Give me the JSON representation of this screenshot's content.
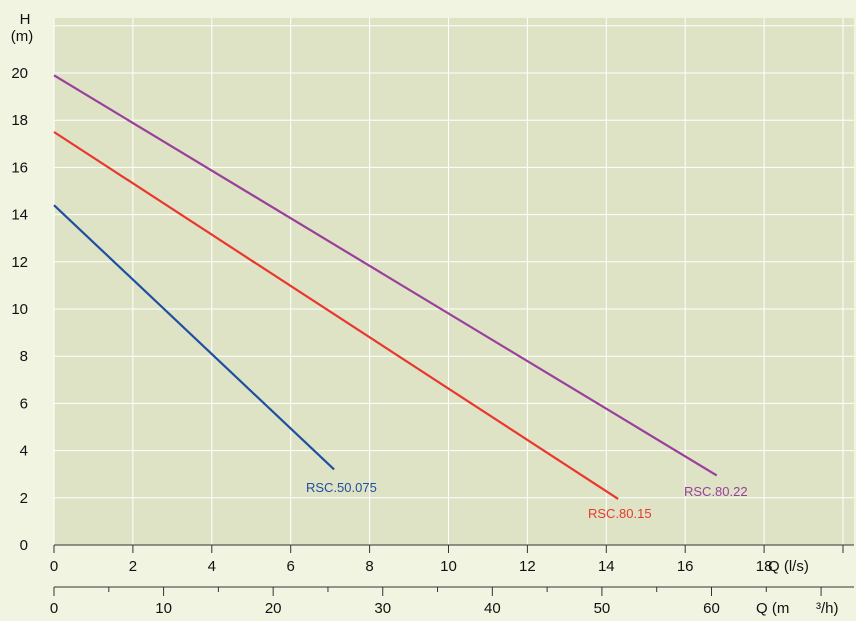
{
  "chart_data": {
    "type": "line",
    "ylabel": "H",
    "ylabel_unit": "(m)",
    "xlabel": "Q (l/s)",
    "x2label": "Q (m",
    "x2label_suffix": "³/h)",
    "xlim": [
      0,
      20
    ],
    "ylim": [
      0,
      22
    ],
    "x_ticks": [
      0,
      2,
      4,
      6,
      8,
      10,
      12,
      14,
      16,
      18
    ],
    "y_ticks": [
      0,
      2,
      4,
      6,
      8,
      10,
      12,
      14,
      16,
      18,
      20
    ],
    "x2_ticks": [
      0,
      10,
      20,
      30,
      40,
      50,
      60
    ],
    "grid": true,
    "series": [
      {
        "name": "RSC.50.075",
        "color": "#1f4fa0",
        "x": [
          0,
          7.1
        ],
        "y": [
          14.4,
          3.2
        ]
      },
      {
        "name": "RSC.80.15",
        "color": "#e8382e",
        "x": [
          0,
          14.3
        ],
        "y": [
          17.5,
          1.95
        ]
      },
      {
        "name": "RSC.80.22",
        "color": "#9a3f9c",
        "x": [
          0,
          16.8
        ],
        "y": [
          19.9,
          2.95
        ]
      }
    ]
  }
}
